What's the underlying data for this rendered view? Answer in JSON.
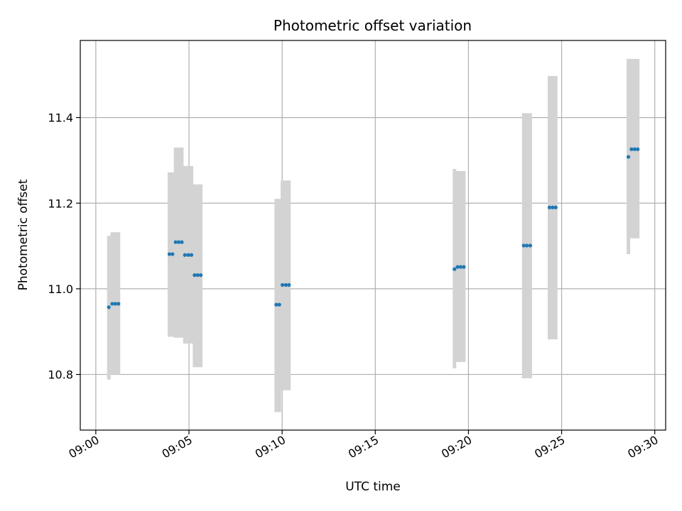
{
  "chart_data": {
    "type": "scatter",
    "title": "Photometric offset variation",
    "xlabel": "UTC time",
    "ylabel": "Photometric offset",
    "x_tick_labels": [
      "09:00",
      "09:05",
      "09:10",
      "09:15",
      "09:20",
      "09:25",
      "09:30"
    ],
    "y_tick_labels": [
      "10.8",
      "11.0",
      "11.2",
      "11.4"
    ],
    "y_ticks": [
      10.8,
      11.0,
      11.2,
      11.4
    ],
    "xlim": [
      "08:59:10",
      "09:30:35"
    ],
    "ylim": [
      10.67,
      11.58
    ],
    "grid": true,
    "colors": {
      "point": "#1f77b4",
      "error_bar": "#d3d3d3",
      "grid": "#b0b0b0",
      "axes": "#000000"
    },
    "points": [
      {
        "t": "09:00:42",
        "y": 10.957,
        "err_low": 10.788,
        "err_high": 11.124
      },
      {
        "t": "09:00:53",
        "y": 10.965,
        "err_low": 10.8,
        "err_high": 11.132
      },
      {
        "t": "09:01:03",
        "y": 10.965,
        "err_low": 10.8,
        "err_high": 11.132
      },
      {
        "t": "09:01:13",
        "y": 10.965,
        "err_low": 10.8,
        "err_high": 11.132
      },
      {
        "t": "09:03:57",
        "y": 11.081,
        "err_low": 10.888,
        "err_high": 11.272
      },
      {
        "t": "09:04:07",
        "y": 11.081,
        "err_low": 10.888,
        "err_high": 11.272
      },
      {
        "t": "09:04:17",
        "y": 11.109,
        "err_low": 10.886,
        "err_high": 11.33
      },
      {
        "t": "09:04:27",
        "y": 11.109,
        "err_low": 10.886,
        "err_high": 11.33
      },
      {
        "t": "09:04:37",
        "y": 11.109,
        "err_low": 10.886,
        "err_high": 11.33
      },
      {
        "t": "09:04:47",
        "y": 11.079,
        "err_low": 10.872,
        "err_high": 11.287
      },
      {
        "t": "09:04:58",
        "y": 11.079,
        "err_low": 10.872,
        "err_high": 11.287
      },
      {
        "t": "09:05:08",
        "y": 11.079,
        "err_low": 10.872,
        "err_high": 11.287
      },
      {
        "t": "09:05:18",
        "y": 11.032,
        "err_low": 10.817,
        "err_high": 11.244
      },
      {
        "t": "09:05:28",
        "y": 11.032,
        "err_low": 10.817,
        "err_high": 11.244
      },
      {
        "t": "09:05:38",
        "y": 11.032,
        "err_low": 10.817,
        "err_high": 11.244
      },
      {
        "t": "09:09:41",
        "y": 10.963,
        "err_low": 10.712,
        "err_high": 11.21
      },
      {
        "t": "09:09:51",
        "y": 10.963,
        "err_low": 10.712,
        "err_high": 11.21
      },
      {
        "t": "09:10:01",
        "y": 11.009,
        "err_low": 10.763,
        "err_high": 11.253
      },
      {
        "t": "09:10:12",
        "y": 11.009,
        "err_low": 10.763,
        "err_high": 11.253
      },
      {
        "t": "09:10:22",
        "y": 11.009,
        "err_low": 10.763,
        "err_high": 11.253
      },
      {
        "t": "09:19:15",
        "y": 11.046,
        "err_low": 10.814,
        "err_high": 11.28
      },
      {
        "t": "09:19:25",
        "y": 11.051,
        "err_low": 10.829,
        "err_high": 11.275
      },
      {
        "t": "09:19:35",
        "y": 11.051,
        "err_low": 10.829,
        "err_high": 11.275
      },
      {
        "t": "09:19:45",
        "y": 11.051,
        "err_low": 10.829,
        "err_high": 11.275
      },
      {
        "t": "09:22:58",
        "y": 11.101,
        "err_low": 10.791,
        "err_high": 11.41
      },
      {
        "t": "09:23:08",
        "y": 11.101,
        "err_low": 10.791,
        "err_high": 11.41
      },
      {
        "t": "09:23:19",
        "y": 11.101,
        "err_low": 10.791,
        "err_high": 11.41
      },
      {
        "t": "09:24:21",
        "y": 11.19,
        "err_low": 10.882,
        "err_high": 11.497
      },
      {
        "t": "09:24:31",
        "y": 11.19,
        "err_low": 10.882,
        "err_high": 11.497
      },
      {
        "t": "09:24:41",
        "y": 11.19,
        "err_low": 10.882,
        "err_high": 11.497
      },
      {
        "t": "09:28:35",
        "y": 11.308,
        "err_low": 11.081,
        "err_high": 11.537
      },
      {
        "t": "09:28:45",
        "y": 11.326,
        "err_low": 11.118,
        "err_high": 11.537
      },
      {
        "t": "09:28:55",
        "y": 11.326,
        "err_low": 11.118,
        "err_high": 11.537
      },
      {
        "t": "09:29:05",
        "y": 11.326,
        "err_low": 11.118,
        "err_high": 11.537
      }
    ]
  }
}
